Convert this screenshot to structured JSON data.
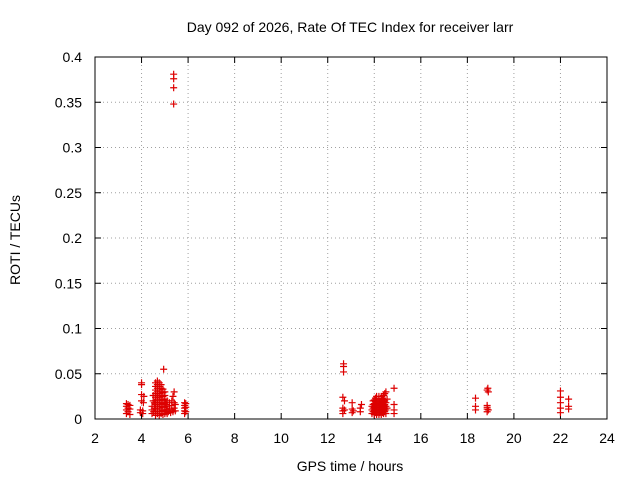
{
  "chart_data": {
    "type": "scatter",
    "title": "Day 092 of 2026, Rate Of TEC Index for receiver larr",
    "xlabel": "GPS time / hours",
    "ylabel": "ROTI / TECUs",
    "xlim": [
      2,
      24
    ],
    "ylim": [
      0,
      0.4
    ],
    "x_ticks": [
      2,
      4,
      6,
      8,
      10,
      12,
      14,
      16,
      18,
      20,
      22,
      24
    ],
    "x_tick_labels": [
      "2",
      "4",
      "6",
      "8",
      "10",
      "12",
      "14",
      "16",
      "18",
      "20",
      "22",
      "24"
    ],
    "y_ticks": [
      0,
      0.05,
      0.1,
      0.15,
      0.2,
      0.25,
      0.3,
      0.35,
      0.4
    ],
    "y_tick_labels": [
      "0",
      "0.05",
      "0.1",
      "0.15",
      "0.2",
      "0.25",
      "0.3",
      "0.35",
      "0.4"
    ],
    "grid": true,
    "marker": "+",
    "color": "#dd0000",
    "series": [
      {
        "name": "ROTI",
        "points": [
          [
            3.35,
            0.006
          ],
          [
            3.35,
            0.01
          ],
          [
            3.35,
            0.014
          ],
          [
            3.35,
            0.017
          ],
          [
            3.42,
            0.008
          ],
          [
            3.42,
            0.012
          ],
          [
            3.42,
            0.016
          ],
          [
            3.5,
            0.005
          ],
          [
            3.5,
            0.011
          ],
          [
            3.5,
            0.015
          ],
          [
            3.95,
            0.007
          ],
          [
            3.95,
            0.01
          ],
          [
            4.0,
            0.02
          ],
          [
            4.0,
            0.027
          ],
          [
            4.0,
            0.038
          ],
          [
            4.0,
            0.04
          ],
          [
            4.05,
            0.006
          ],
          [
            4.05,
            0.009
          ],
          [
            4.08,
            0.018
          ],
          [
            4.1,
            0.025
          ],
          [
            4.45,
            0.006
          ],
          [
            4.45,
            0.01
          ],
          [
            4.45,
            0.014
          ],
          [
            4.5,
            0.02
          ],
          [
            4.5,
            0.026
          ],
          [
            4.52,
            0.008
          ],
          [
            4.55,
            0.012
          ],
          [
            4.55,
            0.018
          ],
          [
            4.6,
            0.004
          ],
          [
            4.6,
            0.008
          ],
          [
            4.6,
            0.012
          ],
          [
            4.6,
            0.016
          ],
          [
            4.6,
            0.02
          ],
          [
            4.6,
            0.024
          ],
          [
            4.6,
            0.028
          ],
          [
            4.6,
            0.032
          ],
          [
            4.6,
            0.036
          ],
          [
            4.6,
            0.04
          ],
          [
            4.68,
            0.006
          ],
          [
            4.68,
            0.01
          ],
          [
            4.68,
            0.014
          ],
          [
            4.68,
            0.018
          ],
          [
            4.68,
            0.022
          ],
          [
            4.68,
            0.026
          ],
          [
            4.68,
            0.03
          ],
          [
            4.68,
            0.034
          ],
          [
            4.68,
            0.038
          ],
          [
            4.68,
            0.042
          ],
          [
            4.76,
            0.004
          ],
          [
            4.76,
            0.008
          ],
          [
            4.76,
            0.012
          ],
          [
            4.76,
            0.016
          ],
          [
            4.76,
            0.02
          ],
          [
            4.76,
            0.024
          ],
          [
            4.76,
            0.028
          ],
          [
            4.76,
            0.032
          ],
          [
            4.76,
            0.036
          ],
          [
            4.76,
            0.04
          ],
          [
            4.84,
            0.006
          ],
          [
            4.84,
            0.01
          ],
          [
            4.84,
            0.014
          ],
          [
            4.84,
            0.018
          ],
          [
            4.84,
            0.022
          ],
          [
            4.84,
            0.026
          ],
          [
            4.84,
            0.03
          ],
          [
            4.84,
            0.034
          ],
          [
            4.84,
            0.038
          ],
          [
            4.92,
            0.005
          ],
          [
            4.92,
            0.009
          ],
          [
            4.92,
            0.013
          ],
          [
            4.92,
            0.017
          ],
          [
            4.92,
            0.021
          ],
          [
            4.92,
            0.025
          ],
          [
            4.92,
            0.029
          ],
          [
            4.92,
            0.033
          ],
          [
            4.95,
            0.055
          ],
          [
            5.0,
            0.006
          ],
          [
            5.0,
            0.01
          ],
          [
            5.0,
            0.014
          ],
          [
            5.0,
            0.018
          ],
          [
            5.0,
            0.022
          ],
          [
            5.0,
            0.026
          ],
          [
            5.0,
            0.03
          ],
          [
            5.05,
            0.008
          ],
          [
            5.05,
            0.016
          ],
          [
            5.1,
            0.006
          ],
          [
            5.1,
            0.01
          ],
          [
            5.1,
            0.014
          ],
          [
            5.1,
            0.02
          ],
          [
            5.15,
            0.008
          ],
          [
            5.2,
            0.012
          ],
          [
            5.2,
            0.018
          ],
          [
            5.25,
            0.007
          ],
          [
            5.3,
            0.01
          ],
          [
            5.3,
            0.015
          ],
          [
            5.3,
            0.02
          ],
          [
            5.35,
            0.008
          ],
          [
            5.35,
            0.025
          ],
          [
            5.4,
            0.012
          ],
          [
            5.4,
            0.018
          ],
          [
            5.4,
            0.03
          ],
          [
            5.45,
            0.009
          ],
          [
            5.45,
            0.016
          ],
          [
            5.38,
            0.381
          ],
          [
            5.38,
            0.376
          ],
          [
            5.38,
            0.366
          ],
          [
            5.38,
            0.348
          ],
          [
            5.85,
            0.006
          ],
          [
            5.85,
            0.009
          ],
          [
            5.85,
            0.012
          ],
          [
            5.85,
            0.015
          ],
          [
            5.85,
            0.018
          ],
          [
            5.9,
            0.008
          ],
          [
            5.9,
            0.013
          ],
          [
            5.9,
            0.017
          ],
          [
            12.65,
            0.006
          ],
          [
            12.65,
            0.009
          ],
          [
            12.65,
            0.012
          ],
          [
            12.65,
            0.024
          ],
          [
            12.68,
            0.058
          ],
          [
            12.68,
            0.061
          ],
          [
            12.68,
            0.052
          ],
          [
            12.72,
            0.01
          ],
          [
            12.72,
            0.02
          ],
          [
            13.05,
            0.007
          ],
          [
            13.05,
            0.011
          ],
          [
            13.05,
            0.018
          ],
          [
            13.1,
            0.009
          ],
          [
            13.4,
            0.008
          ],
          [
            13.4,
            0.012
          ],
          [
            13.45,
            0.016
          ],
          [
            13.9,
            0.006
          ],
          [
            13.9,
            0.01
          ],
          [
            13.9,
            0.014
          ],
          [
            13.95,
            0.008
          ],
          [
            13.95,
            0.012
          ],
          [
            13.95,
            0.016
          ],
          [
            13.95,
            0.02
          ],
          [
            14.0,
            0.005
          ],
          [
            14.0,
            0.009
          ],
          [
            14.0,
            0.013
          ],
          [
            14.0,
            0.017
          ],
          [
            14.0,
            0.021
          ],
          [
            14.05,
            0.007
          ],
          [
            14.05,
            0.011
          ],
          [
            14.05,
            0.015
          ],
          [
            14.05,
            0.019
          ],
          [
            14.05,
            0.023
          ],
          [
            14.1,
            0.005
          ],
          [
            14.1,
            0.009
          ],
          [
            14.1,
            0.013
          ],
          [
            14.1,
            0.017
          ],
          [
            14.1,
            0.021
          ],
          [
            14.1,
            0.025
          ],
          [
            14.15,
            0.007
          ],
          [
            14.15,
            0.011
          ],
          [
            14.15,
            0.015
          ],
          [
            14.15,
            0.019
          ],
          [
            14.2,
            0.005
          ],
          [
            14.2,
            0.009
          ],
          [
            14.2,
            0.013
          ],
          [
            14.2,
            0.017
          ],
          [
            14.2,
            0.021
          ],
          [
            14.2,
            0.025
          ],
          [
            14.25,
            0.007
          ],
          [
            14.25,
            0.011
          ],
          [
            14.25,
            0.015
          ],
          [
            14.25,
            0.019
          ],
          [
            14.3,
            0.005
          ],
          [
            14.3,
            0.009
          ],
          [
            14.3,
            0.013
          ],
          [
            14.3,
            0.017
          ],
          [
            14.3,
            0.021
          ],
          [
            14.3,
            0.025
          ],
          [
            14.35,
            0.007
          ],
          [
            14.35,
            0.011
          ],
          [
            14.35,
            0.015
          ],
          [
            14.35,
            0.019
          ],
          [
            14.35,
            0.023
          ],
          [
            14.4,
            0.006
          ],
          [
            14.4,
            0.01
          ],
          [
            14.4,
            0.014
          ],
          [
            14.4,
            0.018
          ],
          [
            14.4,
            0.022
          ],
          [
            14.4,
            0.026
          ],
          [
            14.45,
            0.008
          ],
          [
            14.45,
            0.012
          ],
          [
            14.45,
            0.016
          ],
          [
            14.45,
            0.02
          ],
          [
            14.45,
            0.028
          ],
          [
            14.5,
            0.006
          ],
          [
            14.5,
            0.01
          ],
          [
            14.5,
            0.014
          ],
          [
            14.5,
            0.018
          ],
          [
            14.5,
            0.03
          ],
          [
            14.55,
            0.012
          ],
          [
            14.55,
            0.022
          ],
          [
            14.85,
            0.006
          ],
          [
            14.85,
            0.01
          ],
          [
            14.85,
            0.016
          ],
          [
            14.85,
            0.034
          ],
          [
            18.35,
            0.01
          ],
          [
            18.35,
            0.014
          ],
          [
            18.35,
            0.023
          ],
          [
            18.85,
            0.008
          ],
          [
            18.85,
            0.011
          ],
          [
            18.85,
            0.013
          ],
          [
            18.85,
            0.015
          ],
          [
            18.85,
            0.032
          ],
          [
            18.88,
            0.034
          ],
          [
            18.9,
            0.01
          ],
          [
            18.9,
            0.03
          ],
          [
            22.0,
            0.007
          ],
          [
            22.0,
            0.012
          ],
          [
            22.0,
            0.018
          ],
          [
            22.0,
            0.024
          ],
          [
            22.0,
            0.031
          ],
          [
            22.35,
            0.011
          ],
          [
            22.35,
            0.014
          ],
          [
            22.35,
            0.022
          ]
        ]
      }
    ]
  }
}
